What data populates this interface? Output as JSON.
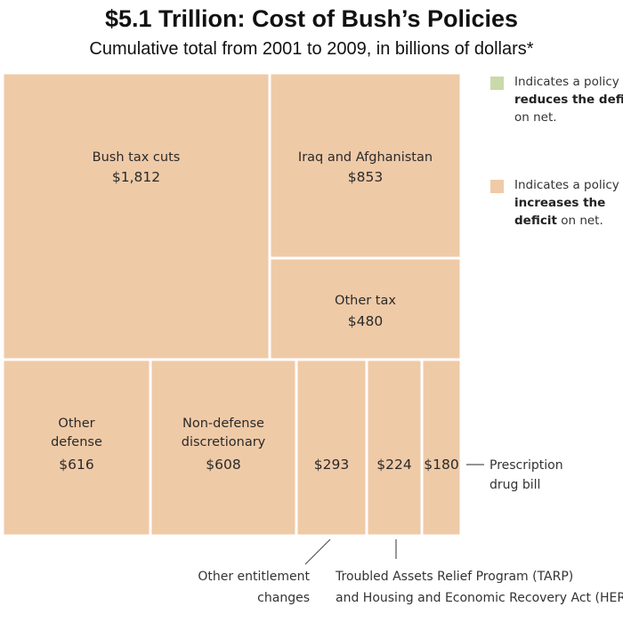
{
  "chart_data": {
    "type": "treemap",
    "title": "$5.1 Trillion: Cost of Bush’s Policies",
    "subtitle": "Cumulative total from 2001 to 2009, in billions of dollars*",
    "cells": [
      {
        "id": "bush-tax-cuts",
        "label": [
          "Bush tax cuts"
        ],
        "value_label": "$1,812",
        "value": 1812
      },
      {
        "id": "iraq-afghanistan",
        "label": [
          "Iraq and Afghanistan"
        ],
        "value_label": "$853",
        "value": 853
      },
      {
        "id": "other-tax",
        "label": [
          "Other tax"
        ],
        "value_label": "$480",
        "value": 480
      },
      {
        "id": "other-defense",
        "label": [
          "Other",
          "defense"
        ],
        "value_label": "$616",
        "value": 616
      },
      {
        "id": "non-defense-discretionary",
        "label": [
          "Non-defense",
          "discretionary"
        ],
        "value_label": "$608",
        "value": 608
      },
      {
        "id": "other-entitlement-changes",
        "label": [],
        "value_label": "$293",
        "value": 293
      },
      {
        "id": "tarp-hera",
        "label": [],
        "value_label": "$224",
        "value": 224
      },
      {
        "id": "prescription-drug-bill",
        "label": [],
        "value_label": "$180",
        "value": 180
      }
    ],
    "annotations": [
      {
        "id": "prescription-drug-bill-note",
        "lines": [
          "Prescription",
          "drug bill"
        ]
      },
      {
        "id": "other-entitlement-note",
        "lines": [
          "Other entitlement",
          "changes"
        ]
      },
      {
        "id": "tarp-hera-note",
        "lines": [
          "Troubled Assets Relief Program (TARP)",
          "and Housing and Economic Recovery Act (HERA)"
        ]
      }
    ],
    "legend": {
      "placement": "right",
      "items": [
        {
          "color": "#c9d9a8",
          "text_before": "Indicates a policy that ",
          "bold": "reduces the deficit",
          "text_after": " on net."
        },
        {
          "color": "#efcaa7",
          "text_before": "Indicates a policy that ",
          "bold": "increases the deficit",
          "text_after": " on net."
        }
      ]
    },
    "colors": {
      "increases": "#efcaa7",
      "reduces": "#c9d9a8",
      "border": "#ffffff"
    }
  }
}
